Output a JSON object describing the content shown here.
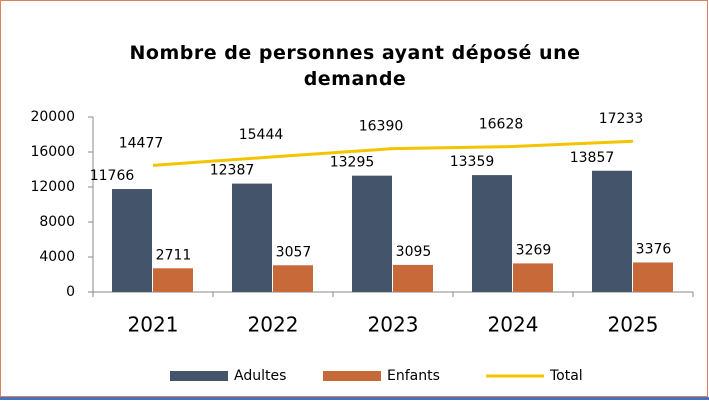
{
  "chart_data": {
    "type": "bar",
    "title": "Nombre de personnes ayant déposé une demande",
    "categories": [
      "2021",
      "2022",
      "2023",
      "2024",
      "2025"
    ],
    "series": [
      {
        "name": "Adultes",
        "color": "#44546a",
        "type": "bar",
        "values": [
          11766,
          12387,
          13295,
          13359,
          13857
        ]
      },
      {
        "name": "Enfants",
        "color": "#c8693a",
        "type": "bar",
        "values": [
          2711,
          3057,
          3095,
          3269,
          3376
        ]
      },
      {
        "name": "Total",
        "color": "#f5c400",
        "type": "line",
        "values": [
          14477,
          15444,
          16390,
          16628,
          17233
        ]
      }
    ],
    "ylim": [
      0,
      20000
    ],
    "yticks": [
      0,
      4000,
      8000,
      12000,
      16000,
      20000
    ],
    "grid": false,
    "legend": "bottom"
  }
}
